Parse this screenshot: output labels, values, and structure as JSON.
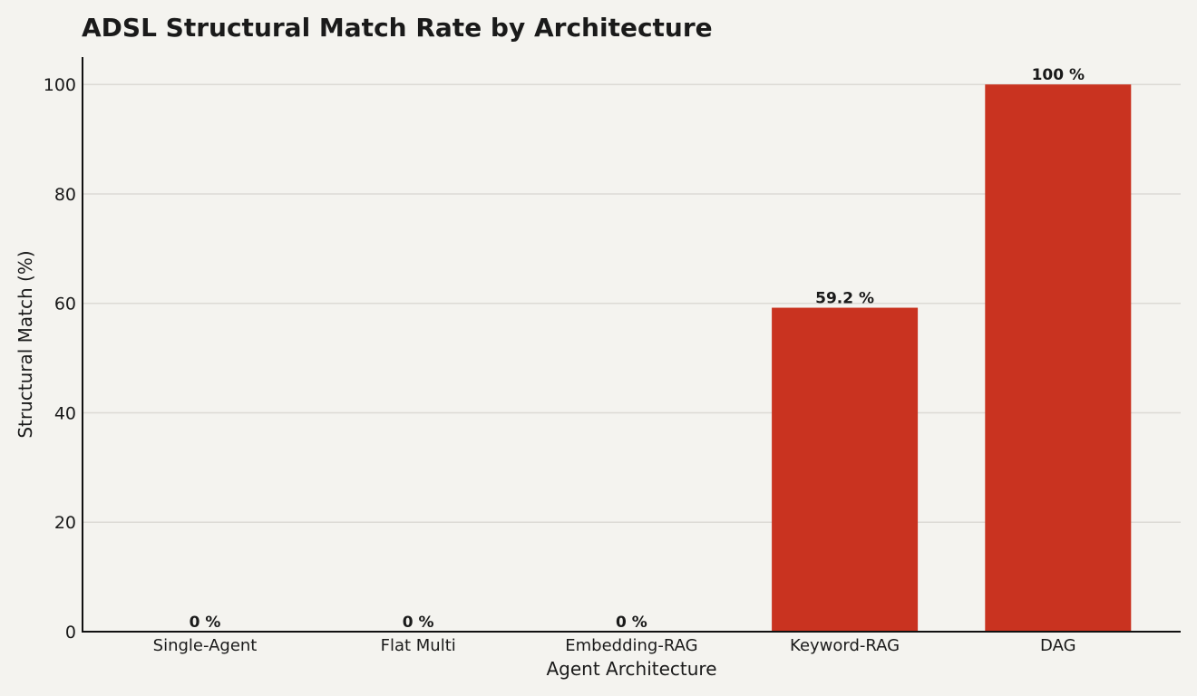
{
  "chart_data": {
    "type": "bar",
    "title": "ADSL Structural Match Rate by Architecture",
    "xlabel": "Agent Architecture",
    "ylabel": "Structural Match (%)",
    "categories": [
      "Single-Agent",
      "Flat Multi",
      "Embedding-RAG",
      "Keyword-RAG",
      "DAG"
    ],
    "values": [
      0,
      0,
      0,
      59.2,
      100
    ],
    "data_labels": [
      "0 %",
      "0 %",
      "0 %",
      "59.2 %",
      "100 %"
    ],
    "yticks": [
      "0",
      "20",
      "40",
      "60",
      "80",
      "100"
    ],
    "ylim": [
      0,
      105
    ],
    "grid": "horizontal",
    "bar_color": "#c93320"
  }
}
